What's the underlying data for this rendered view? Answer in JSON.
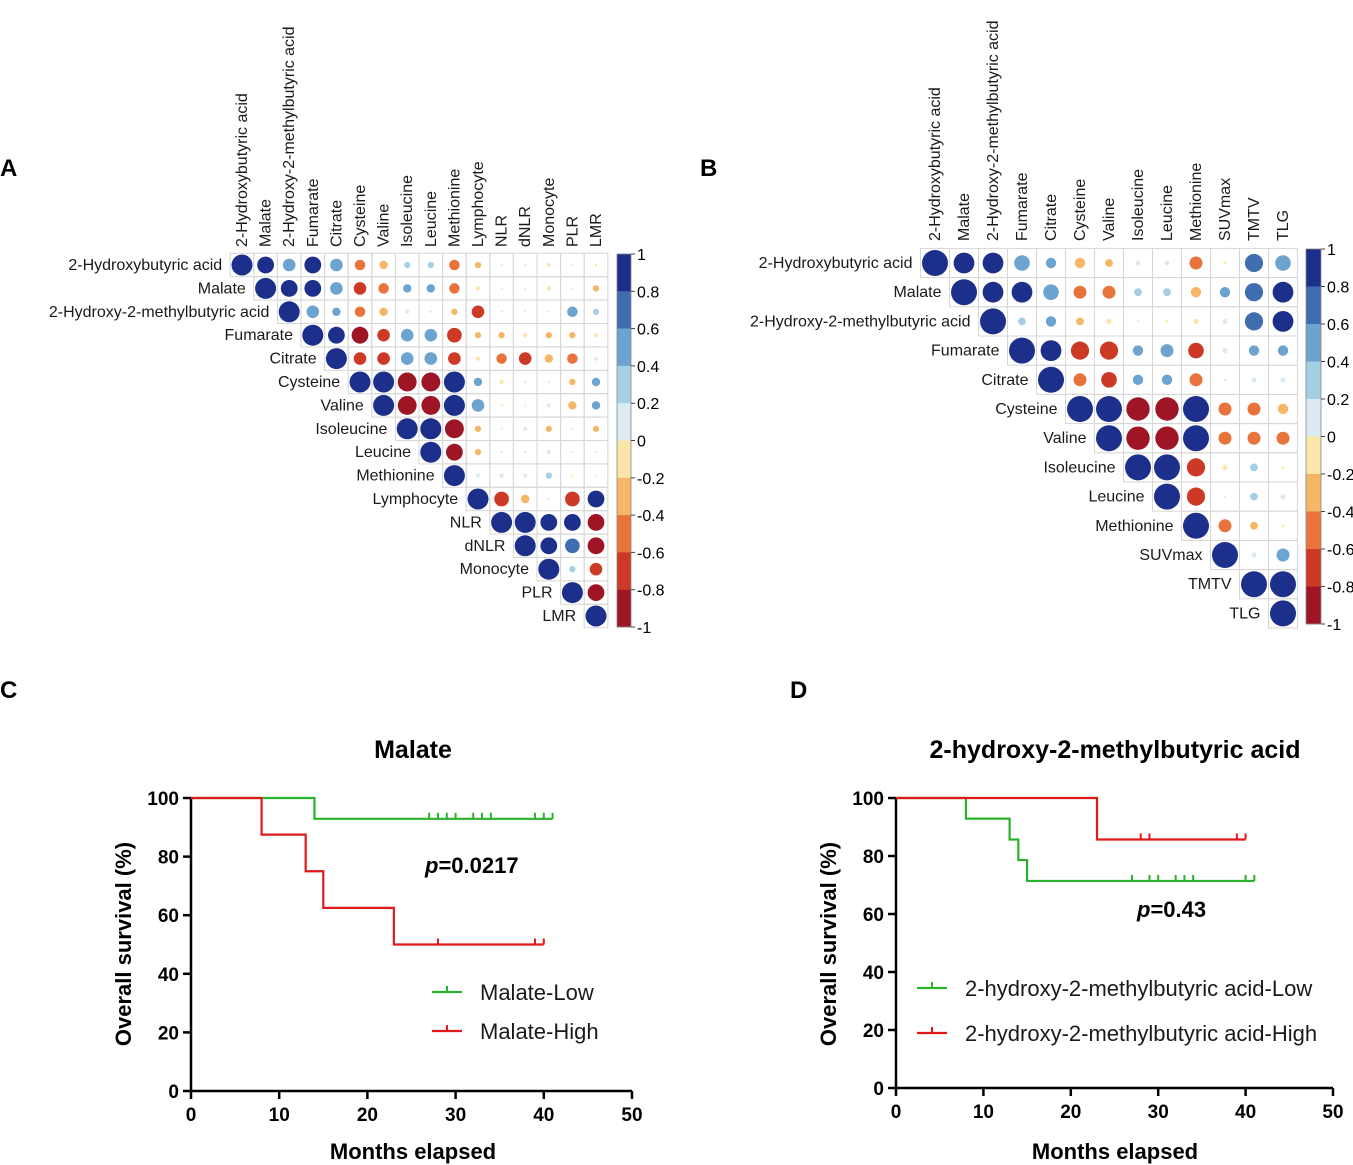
{
  "panels": {
    "A": "A",
    "B": "B",
    "C": "C",
    "D": "D"
  },
  "colorbar": {
    "ticks": [
      "1",
      "0.8",
      "0.6",
      "0.4",
      "0.2",
      "0",
      "-0.2",
      "-0.4",
      "-0.6",
      "-0.8",
      "-1"
    ],
    "colors": [
      "#1c2f8a",
      "#3f6db0",
      "#6da3cf",
      "#a5cfe3",
      "#dcebf3",
      "#f9e6a8",
      "#f5b766",
      "#e8743c",
      "#cc3a26",
      "#9e1625"
    ]
  },
  "chart_data": [
    {
      "id": "A",
      "type": "heatmap",
      "subtype": "upper-triangle correlation circles",
      "labels": [
        "2-Hydroxybutyric acid",
        "Malate",
        "2-Hydroxy-2-methylbutyric acid",
        "Fumarate",
        "Citrate",
        "Cysteine",
        "Valine",
        "Isoleucine",
        "Leucine",
        "Methionine",
        "Lymphocyte",
        "NLR",
        "dNLR",
        "Monocyte",
        "PLR",
        "LMR"
      ],
      "matrix": [
        [
          1,
          0.8,
          0.6,
          0.8,
          0.6,
          -0.5,
          -0.4,
          0.3,
          0.3,
          -0.5,
          -0.3,
          0.1,
          0.1,
          -0.2,
          0.1,
          -0.1
        ],
        [
          null,
          1,
          0.8,
          0.8,
          0.6,
          -0.6,
          -0.5,
          0.4,
          0.4,
          -0.5,
          -0.2,
          0.05,
          0.1,
          -0.2,
          0.05,
          -0.3
        ],
        [
          null,
          null,
          1,
          0.6,
          0.4,
          -0.5,
          -0.4,
          0.2,
          0.1,
          -0.3,
          -0.6,
          0.1,
          0.1,
          0.1,
          0.5,
          0.3
        ],
        [
          null,
          null,
          null,
          1,
          0.8,
          -0.8,
          -0.6,
          0.6,
          0.6,
          -0.7,
          -0.3,
          -0.3,
          -0.2,
          -0.3,
          -0.3,
          -0.2
        ],
        [
          null,
          null,
          null,
          null,
          1,
          -0.6,
          -0.6,
          0.6,
          0.6,
          -0.6,
          -0.2,
          -0.5,
          -0.6,
          -0.4,
          -0.5,
          0.2
        ],
        [
          null,
          null,
          null,
          null,
          null,
          1,
          1,
          -0.9,
          -0.9,
          1,
          0.4,
          -0.2,
          0.1,
          0.1,
          -0.3,
          0.4
        ],
        [
          null,
          null,
          null,
          null,
          null,
          null,
          1,
          -0.9,
          -0.9,
          1,
          0.6,
          -0.1,
          0.1,
          0.2,
          -0.4,
          0.4
        ],
        [
          null,
          null,
          null,
          null,
          null,
          null,
          null,
          1,
          1,
          -0.9,
          -0.3,
          0.1,
          0.2,
          -0.3,
          0.1,
          -0.3
        ],
        [
          null,
          null,
          null,
          null,
          null,
          null,
          null,
          null,
          1,
          -0.8,
          -0.3,
          0.1,
          0.05,
          0.2,
          0.1,
          0.1
        ],
        [
          null,
          null,
          null,
          null,
          null,
          null,
          null,
          null,
          null,
          1,
          0.2,
          0.2,
          0.2,
          0.3,
          -0.1,
          0.1
        ],
        [
          null,
          null,
          null,
          null,
          null,
          null,
          null,
          null,
          null,
          null,
          1,
          -0.7,
          -0.4,
          0.1,
          -0.7,
          0.8
        ],
        [
          null,
          null,
          null,
          null,
          null,
          null,
          null,
          null,
          null,
          null,
          null,
          1,
          1,
          0.8,
          0.8,
          -0.8
        ],
        [
          null,
          null,
          null,
          null,
          null,
          null,
          null,
          null,
          null,
          null,
          null,
          null,
          1,
          0.8,
          0.7,
          -0.8
        ],
        [
          null,
          null,
          null,
          null,
          null,
          null,
          null,
          null,
          null,
          null,
          null,
          null,
          null,
          1,
          0.3,
          -0.6
        ],
        [
          null,
          null,
          null,
          null,
          null,
          null,
          null,
          null,
          null,
          null,
          null,
          null,
          null,
          null,
          1,
          -0.8
        ],
        [
          null,
          null,
          null,
          null,
          null,
          null,
          null,
          null,
          null,
          null,
          null,
          null,
          null,
          null,
          null,
          1
        ]
      ],
      "range": [
        -1,
        1
      ]
    },
    {
      "id": "B",
      "type": "heatmap",
      "subtype": "upper-triangle correlation circles",
      "labels": [
        "2-Hydroxybutyric acid",
        "Malate",
        "2-Hydroxy-2-methylbutyric acid",
        "Fumarate",
        "Citrate",
        "Cysteine",
        "Valine",
        "Isoleucine",
        "Leucine",
        "Methionine",
        "SUVmax",
        "TMTV",
        "TLG"
      ],
      "matrix": [
        [
          1,
          0.8,
          0.8,
          0.6,
          0.4,
          -0.4,
          -0.3,
          0.2,
          0.2,
          -0.5,
          -0.1,
          0.7,
          0.6
        ],
        [
          null,
          1,
          0.8,
          0.8,
          0.6,
          -0.5,
          -0.5,
          0.3,
          0.3,
          -0.4,
          0.4,
          0.7,
          0.8
        ],
        [
          null,
          null,
          1,
          0.3,
          0.4,
          -0.3,
          -0.2,
          0.1,
          -0.1,
          -0.2,
          0.2,
          0.7,
          0.8
        ],
        [
          null,
          null,
          null,
          1,
          0.8,
          -0.7,
          -0.7,
          0.4,
          0.5,
          -0.6,
          0.2,
          0.4,
          0.4
        ],
        [
          null,
          null,
          null,
          null,
          1,
          -0.5,
          -0.6,
          0.4,
          0.4,
          -0.5,
          0.1,
          0.2,
          0.2
        ],
        [
          null,
          null,
          null,
          null,
          null,
          1,
          1,
          -0.9,
          -0.9,
          1,
          -0.5,
          -0.5,
          -0.4
        ],
        [
          null,
          null,
          null,
          null,
          null,
          null,
          1,
          -0.9,
          -0.9,
          1,
          -0.5,
          -0.5,
          -0.5
        ],
        [
          null,
          null,
          null,
          null,
          null,
          null,
          null,
          1,
          1,
          -0.7,
          -0.2,
          0.3,
          -0.1
        ],
        [
          null,
          null,
          null,
          null,
          null,
          null,
          null,
          null,
          1,
          -0.7,
          0.1,
          0.3,
          0.2
        ],
        [
          null,
          null,
          null,
          null,
          null,
          null,
          null,
          null,
          null,
          1,
          -0.5,
          -0.3,
          -0.1
        ],
        [
          null,
          null,
          null,
          null,
          null,
          null,
          null,
          null,
          null,
          null,
          1,
          0.2,
          0.5
        ],
        [
          null,
          null,
          null,
          null,
          null,
          null,
          null,
          null,
          null,
          null,
          null,
          1,
          1
        ],
        [
          null,
          null,
          null,
          null,
          null,
          null,
          null,
          null,
          null,
          null,
          null,
          null,
          1
        ]
      ],
      "range": [
        -1,
        1
      ]
    },
    {
      "id": "C",
      "type": "line",
      "subtype": "kaplan-meier",
      "title": "Malate",
      "xlabel": "Months elapsed",
      "ylabel": "Overall survival (%)",
      "xlim": [
        0,
        50
      ],
      "ylim": [
        0,
        100
      ],
      "xticks": [
        0,
        10,
        20,
        30,
        40,
        50
      ],
      "yticks": [
        0,
        20,
        40,
        60,
        80,
        100
      ],
      "pvalue_prefix": "p",
      "pvalue": "=0.0217",
      "series": [
        {
          "name": "Malate-Low",
          "color": "#2ab32a",
          "steps": [
            [
              0,
              100
            ],
            [
              14,
              100
            ],
            [
              14,
              92.9
            ],
            [
              41,
              92.9
            ]
          ],
          "censors": [
            27,
            28,
            29,
            30,
            32,
            33,
            34,
            39,
            40,
            41
          ],
          "censor_y": 92.9
        },
        {
          "name": "Malate-High",
          "color": "#e0191a",
          "steps": [
            [
              0,
              100
            ],
            [
              8,
              100
            ],
            [
              8,
              87.5
            ],
            [
              13,
              87.5
            ],
            [
              13,
              75
            ],
            [
              15,
              75
            ],
            [
              15,
              62.5
            ],
            [
              23,
              62.5
            ],
            [
              23,
              50
            ],
            [
              40,
              50
            ]
          ],
          "censors": [
            28,
            39,
            40
          ],
          "censor_y": 50
        }
      ]
    },
    {
      "id": "D",
      "type": "line",
      "subtype": "kaplan-meier",
      "title": "2-hydroxy-2-methylbutyric acid",
      "xlabel": "Months elapsed",
      "ylabel": "Overall survival (%)",
      "xlim": [
        0,
        50
      ],
      "ylim": [
        0,
        100
      ],
      "xticks": [
        0,
        10,
        20,
        30,
        40,
        50
      ],
      "yticks": [
        0,
        20,
        40,
        60,
        80,
        100
      ],
      "pvalue_prefix": "p",
      "pvalue": "=0.43",
      "series": [
        {
          "name": "2-hydroxy-2-methylbutyric acid-Low",
          "color": "#2ab32a",
          "steps": [
            [
              0,
              100
            ],
            [
              8,
              100
            ],
            [
              8,
              92.9
            ],
            [
              13,
              92.9
            ],
            [
              13,
              85.7
            ],
            [
              14,
              85.7
            ],
            [
              14,
              78.6
            ],
            [
              15,
              78.6
            ],
            [
              15,
              71.4
            ],
            [
              41,
              71.4
            ]
          ],
          "censors": [
            27,
            29,
            30,
            32,
            33,
            34,
            40,
            41
          ],
          "censor_y": 71.4
        },
        {
          "name": "2-hydroxy-2-methylbutyric acid-High",
          "color": "#e0191a",
          "steps": [
            [
              0,
              100
            ],
            [
              23,
              100
            ],
            [
              23,
              85.7
            ],
            [
              40,
              85.7
            ]
          ],
          "censors": [
            28,
            29,
            39,
            40
          ],
          "censor_y": 85.7
        }
      ]
    }
  ]
}
